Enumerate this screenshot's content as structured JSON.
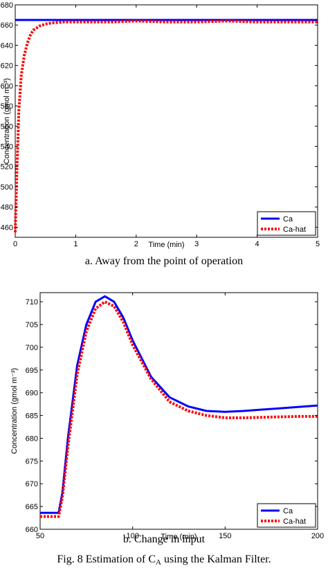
{
  "figure_caption": {
    "prefix": "Fig. 8 Estimation of C",
    "subscript": "A",
    "suffix": " using the Kalman Filter."
  },
  "chart_data": [
    {
      "type": "line",
      "caption": "a. Away from the point of operation",
      "xlabel": "Time (min)",
      "ylabel": "Concentration (gmol m⁻³)",
      "xlim": [
        0,
        5
      ],
      "ylim": [
        450,
        680
      ],
      "xticks": [
        0,
        1,
        2,
        3,
        4,
        5
      ],
      "yticks": [
        460,
        480,
        500,
        520,
        540,
        560,
        580,
        600,
        620,
        640,
        660,
        680
      ],
      "grid": false,
      "legend_position": "bottom-right",
      "series": [
        {
          "name": "Ca",
          "style": "solid",
          "color": "#0000ff",
          "x": [
            0,
            5
          ],
          "y": [
            665,
            665
          ]
        },
        {
          "name": "Ca-hat",
          "style": "dotted",
          "color": "#ff0000",
          "x": [
            0,
            0.03,
            0.06,
            0.1,
            0.15,
            0.2,
            0.25,
            0.3,
            0.4,
            0.5,
            0.6,
            0.8,
            1.0,
            1.3,
            1.6,
            2.0,
            2.5,
            3.0,
            3.5,
            4.0,
            4.5,
            5.0
          ],
          "y": [
            455,
            520,
            575,
            610,
            630,
            642,
            650,
            655,
            659,
            661,
            662,
            663,
            663,
            663,
            663,
            664,
            663,
            663,
            664,
            663,
            663,
            663
          ]
        }
      ]
    },
    {
      "type": "line",
      "caption": "b. Change in input",
      "xlabel": "Time (min)",
      "ylabel": "Concentration (gmol m⁻³)",
      "xlim": [
        50,
        200
      ],
      "ylim": [
        660,
        712
      ],
      "xticks": [
        50,
        100,
        150,
        200
      ],
      "yticks": [
        660,
        665,
        670,
        675,
        680,
        685,
        690,
        695,
        700,
        705,
        710
      ],
      "grid": false,
      "legend_position": "bottom-right",
      "series": [
        {
          "name": "Ca",
          "style": "solid",
          "color": "#0000ff",
          "x": [
            50,
            60,
            62,
            65,
            70,
            75,
            80,
            85,
            90,
            95,
            100,
            110,
            120,
            130,
            140,
            150,
            160,
            170,
            180,
            190,
            200
          ],
          "y": [
            663.6,
            663.6,
            668,
            680,
            696,
            705,
            710,
            711.2,
            710,
            706.5,
            701.5,
            693.5,
            689,
            687,
            686,
            685.8,
            686,
            686.3,
            686.6,
            686.9,
            687.2
          ]
        },
        {
          "name": "Ca-hat",
          "style": "dotted",
          "color": "#ff0000",
          "x": [
            50,
            60,
            62,
            65,
            70,
            75,
            80,
            85,
            90,
            95,
            100,
            110,
            120,
            130,
            140,
            150,
            160,
            170,
            180,
            190,
            200
          ],
          "y": [
            662.8,
            662.8,
            667,
            678,
            694,
            703.5,
            708.5,
            710,
            709,
            705.5,
            700.5,
            693,
            688,
            686,
            685,
            684.5,
            684.5,
            684.6,
            684.7,
            684.8,
            684.8
          ]
        }
      ]
    }
  ]
}
